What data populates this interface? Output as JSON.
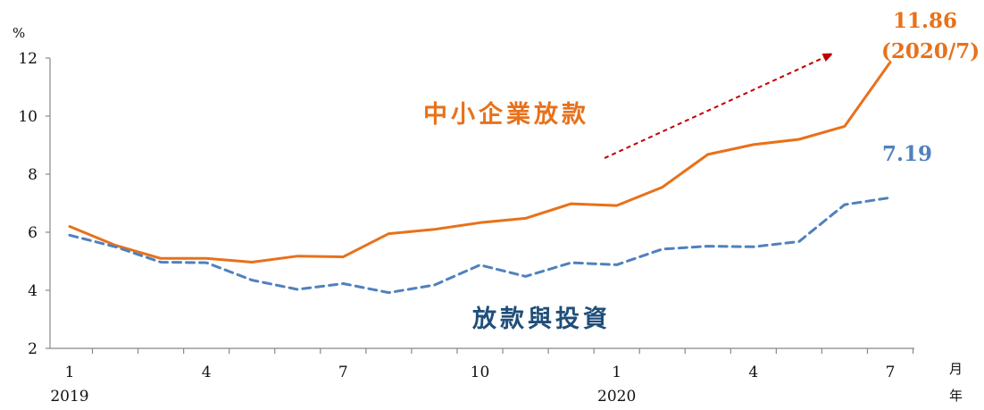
{
  "chart_data": {
    "type": "line",
    "y_unit": "%",
    "x_unit_month": "月",
    "x_unit_year": "年",
    "ylim": [
      2,
      12
    ],
    "y_ticks": [
      2,
      4,
      6,
      8,
      10,
      12
    ],
    "months_count": 19,
    "x_tick_labels": [
      {
        "index": 0,
        "label": "1"
      },
      {
        "index": 3,
        "label": "4"
      },
      {
        "index": 6,
        "label": "7"
      },
      {
        "index": 9,
        "label": "10"
      },
      {
        "index": 12,
        "label": "1"
      },
      {
        "index": 15,
        "label": "4"
      },
      {
        "index": 18,
        "label": "7"
      }
    ],
    "year_labels": [
      {
        "index": 0,
        "label": "2019"
      },
      {
        "index": 12,
        "label": "2020"
      }
    ],
    "grid": false,
    "legend": "none",
    "series": [
      {
        "name": "中小企業放款",
        "color": "#E8711A",
        "style": "solid",
        "values": [
          6.2,
          5.55,
          5.1,
          5.1,
          4.97,
          5.18,
          5.15,
          5.95,
          6.1,
          6.33,
          6.48,
          6.98,
          6.92,
          7.55,
          8.68,
          9.02,
          9.2,
          9.65,
          11.86
        ]
      },
      {
        "name": "放款與投資",
        "color": "#4F81BD",
        "style": "dashed",
        "values": [
          5.9,
          5.5,
          4.97,
          4.95,
          4.35,
          4.03,
          4.23,
          3.92,
          4.18,
          4.87,
          4.48,
          4.95,
          4.88,
          5.42,
          5.52,
          5.5,
          5.68,
          6.95,
          7.19
        ]
      }
    ],
    "annotations": {
      "sme_end_value": "11.86",
      "sme_end_date": "(2020/7)",
      "total_end_value": "7.19"
    },
    "trend_arrow_color": "#C00000"
  }
}
